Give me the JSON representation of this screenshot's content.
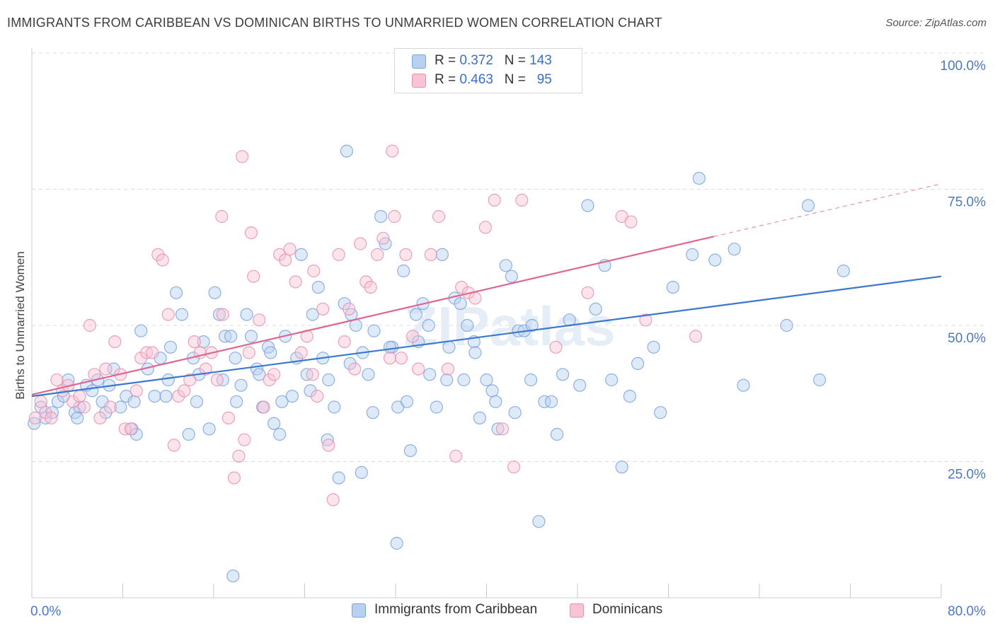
{
  "title": "IMMIGRANTS FROM CARIBBEAN VS DOMINICAN BIRTHS TO UNMARRIED WOMEN CORRELATION CHART",
  "source": "Source: ZipAtlas.com",
  "watermark": "ZIPatlas",
  "legend": {
    "rows": [
      {
        "r_label": "R =",
        "r_value": "0.372",
        "n_label": "N =",
        "n_value": "143"
      },
      {
        "r_label": "R =",
        "r_value": "0.463",
        "n_label": "N =",
        "n_value": "95"
      }
    ]
  },
  "colors": {
    "blue_fill": "#b8d0f2",
    "blue_stroke": "#7aa3e0",
    "blue_line": "#3a78d0",
    "pink_fill": "#f8c4d4",
    "pink_stroke": "#e892ad",
    "pink_line": "#e0668f",
    "tick_label": "#4a78c8",
    "grid": "#dcdcdc"
  },
  "chart_data": {
    "type": "scatter",
    "title": "IMMIGRANTS FROM CARIBBEAN VS DOMINICAN BIRTHS TO UNMARRIED WOMEN CORRELATION CHART",
    "xlabel": "",
    "ylabel": "Births to Unmarried Women",
    "xlim": [
      0,
      80
    ],
    "ylim": [
      0,
      100
    ],
    "x_tick_labels": [
      "0.0%",
      "80.0%"
    ],
    "y_tick_labels": [
      "25.0%",
      "50.0%",
      "75.0%",
      "100.0%"
    ],
    "y_ticks": [
      25,
      50,
      75,
      100
    ],
    "grid": "horizontal dashed",
    "legend_position": "bottom",
    "series": [
      {
        "name": "Immigrants from Caribbean",
        "color": "#7aa3e0",
        "trend": {
          "x0": 0,
          "y0": 37.0,
          "x1": 80,
          "y1": 59.0,
          "dashed_from": null
        },
        "points": [
          [
            0.2,
            32
          ],
          [
            0.8,
            35
          ],
          [
            1.2,
            33
          ],
          [
            1.8,
            34
          ],
          [
            2.3,
            36
          ],
          [
            2.8,
            37
          ],
          [
            3.2,
            40
          ],
          [
            3.8,
            34
          ],
          [
            4.2,
            35
          ],
          [
            4.8,
            39
          ],
          [
            5.3,
            38
          ],
          [
            5.8,
            40
          ],
          [
            6.2,
            36
          ],
          [
            6.8,
            39
          ],
          [
            7.2,
            42
          ],
          [
            7.8,
            35
          ],
          [
            8.3,
            37
          ],
          [
            8.8,
            31
          ],
          [
            9.2,
            30
          ],
          [
            9.6,
            49
          ],
          [
            10.2,
            42
          ],
          [
            10.8,
            37
          ],
          [
            11.3,
            44
          ],
          [
            11.8,
            37
          ],
          [
            12.2,
            46
          ],
          [
            12.7,
            56
          ],
          [
            13.2,
            52
          ],
          [
            13.8,
            30
          ],
          [
            14.2,
            44
          ],
          [
            14.7,
            41
          ],
          [
            15.1,
            47
          ],
          [
            15.6,
            31
          ],
          [
            16.1,
            56
          ],
          [
            16.5,
            52
          ],
          [
            17.0,
            48
          ],
          [
            17.5,
            48
          ],
          [
            17.9,
            44
          ],
          [
            18.4,
            39
          ],
          [
            18.9,
            52
          ],
          [
            19.3,
            48
          ],
          [
            19.8,
            42
          ],
          [
            20.3,
            35
          ],
          [
            20.8,
            46
          ],
          [
            21.3,
            32
          ],
          [
            21.8,
            30
          ],
          [
            22.3,
            48
          ],
          [
            22.9,
            37
          ],
          [
            23.3,
            44
          ],
          [
            23.7,
            63
          ],
          [
            24.2,
            41
          ],
          [
            24.7,
            52
          ],
          [
            25.2,
            57
          ],
          [
            25.6,
            44
          ],
          [
            26.1,
            40
          ],
          [
            26.6,
            35
          ],
          [
            27.0,
            22
          ],
          [
            27.5,
            54
          ],
          [
            28.1,
            52
          ],
          [
            28.5,
            50
          ],
          [
            29.1,
            45
          ],
          [
            29.6,
            41
          ],
          [
            30.1,
            49
          ],
          [
            30.7,
            70
          ],
          [
            31.1,
            65
          ],
          [
            31.7,
            46
          ],
          [
            32.2,
            35
          ],
          [
            32.7,
            60
          ],
          [
            33.3,
            27
          ],
          [
            33.8,
            52
          ],
          [
            34.4,
            54
          ],
          [
            34.9,
            50
          ],
          [
            35.6,
            35
          ],
          [
            36.1,
            63
          ],
          [
            36.7,
            46
          ],
          [
            37.2,
            55
          ],
          [
            37.7,
            54
          ],
          [
            38.3,
            50
          ],
          [
            38.9,
            47
          ],
          [
            39.4,
            33
          ],
          [
            40.0,
            40
          ],
          [
            40.5,
            38
          ],
          [
            41.0,
            31
          ],
          [
            41.7,
            61
          ],
          [
            42.2,
            59
          ],
          [
            42.8,
            49
          ],
          [
            43.3,
            49
          ],
          [
            43.9,
            40
          ],
          [
            44.6,
            14
          ],
          [
            45.1,
            36
          ],
          [
            45.7,
            36
          ],
          [
            46.2,
            30
          ],
          [
            46.7,
            41
          ],
          [
            47.3,
            51
          ],
          [
            48.2,
            39
          ],
          [
            48.9,
            72
          ],
          [
            49.6,
            53
          ],
          [
            50.4,
            61
          ],
          [
            51.0,
            40
          ],
          [
            51.9,
            24
          ],
          [
            52.6,
            37
          ],
          [
            53.3,
            43
          ],
          [
            54.7,
            46
          ],
          [
            55.3,
            34
          ],
          [
            56.4,
            57
          ],
          [
            58.1,
            63
          ],
          [
            58.7,
            77
          ],
          [
            60.1,
            62
          ],
          [
            61.8,
            64
          ],
          [
            62.6,
            39
          ],
          [
            66.4,
            50
          ],
          [
            68.3,
            72
          ],
          [
            69.3,
            40
          ],
          [
            71.4,
            60
          ],
          [
            17.7,
            4
          ],
          [
            32.1,
            10
          ],
          [
            27.7,
            82
          ],
          [
            4.0,
            33
          ],
          [
            6.5,
            34
          ],
          [
            9.0,
            36
          ],
          [
            12.0,
            40
          ],
          [
            14.5,
            36
          ],
          [
            16.8,
            40
          ],
          [
            18.0,
            36
          ],
          [
            20.0,
            41
          ],
          [
            21.0,
            45
          ],
          [
            22.0,
            36
          ],
          [
            24.5,
            38
          ],
          [
            26.0,
            29
          ],
          [
            28.0,
            43
          ],
          [
            29.0,
            23
          ],
          [
            30.0,
            34
          ],
          [
            31.5,
            46
          ],
          [
            33.0,
            36
          ],
          [
            34.0,
            47
          ],
          [
            35.0,
            41
          ],
          [
            36.5,
            40
          ],
          [
            38.0,
            40
          ],
          [
            39.0,
            45
          ],
          [
            40.8,
            36
          ],
          [
            42.5,
            34
          ],
          [
            44.0,
            50
          ]
        ]
      },
      {
        "name": "Dominicans",
        "color": "#e892ad",
        "trend": {
          "x0": 0,
          "y0": 37.3,
          "x1": 80,
          "y1": 76.0,
          "dashed_from": 60
        },
        "points": [
          [
            0.3,
            33
          ],
          [
            0.8,
            36
          ],
          [
            1.2,
            34
          ],
          [
            1.7,
            33
          ],
          [
            2.2,
            40
          ],
          [
            2.7,
            38
          ],
          [
            3.2,
            39
          ],
          [
            3.6,
            36
          ],
          [
            4.2,
            37
          ],
          [
            4.6,
            35
          ],
          [
            5.1,
            50
          ],
          [
            5.5,
            41
          ],
          [
            6.0,
            33
          ],
          [
            6.5,
            42
          ],
          [
            6.9,
            35
          ],
          [
            7.3,
            47
          ],
          [
            7.8,
            41
          ],
          [
            8.2,
            31
          ],
          [
            8.7,
            31
          ],
          [
            9.2,
            38
          ],
          [
            9.6,
            44
          ],
          [
            10.1,
            45
          ],
          [
            10.6,
            45
          ],
          [
            11.1,
            63
          ],
          [
            11.5,
            62
          ],
          [
            12.0,
            52
          ],
          [
            12.5,
            28
          ],
          [
            12.9,
            37
          ],
          [
            13.4,
            38
          ],
          [
            13.9,
            40
          ],
          [
            14.3,
            47
          ],
          [
            14.8,
            45
          ],
          [
            15.3,
            42
          ],
          [
            15.8,
            45
          ],
          [
            16.3,
            40
          ],
          [
            16.8,
            52
          ],
          [
            17.3,
            33
          ],
          [
            17.8,
            22
          ],
          [
            18.2,
            26
          ],
          [
            18.7,
            29
          ],
          [
            19.1,
            45
          ],
          [
            19.5,
            59
          ],
          [
            20.0,
            51
          ],
          [
            20.4,
            35
          ],
          [
            20.9,
            40
          ],
          [
            21.3,
            41
          ],
          [
            21.8,
            63
          ],
          [
            22.3,
            62
          ],
          [
            22.7,
            64
          ],
          [
            23.2,
            58
          ],
          [
            23.7,
            45
          ],
          [
            24.2,
            48
          ],
          [
            24.7,
            41
          ],
          [
            25.1,
            37
          ],
          [
            25.6,
            53
          ],
          [
            26.1,
            28
          ],
          [
            26.5,
            18
          ],
          [
            27.0,
            63
          ],
          [
            27.5,
            47
          ],
          [
            27.9,
            53
          ],
          [
            28.4,
            42
          ],
          [
            28.9,
            65
          ],
          [
            29.4,
            58
          ],
          [
            29.8,
            57
          ],
          [
            30.4,
            63
          ],
          [
            30.9,
            66
          ],
          [
            31.5,
            44
          ],
          [
            31.9,
            70
          ],
          [
            32.5,
            44
          ],
          [
            32.9,
            63
          ],
          [
            33.5,
            48
          ],
          [
            34.0,
            42
          ],
          [
            35.1,
            63
          ],
          [
            35.8,
            70
          ],
          [
            36.6,
            42
          ],
          [
            37.3,
            26
          ],
          [
            37.8,
            57
          ],
          [
            38.4,
            56
          ],
          [
            39.0,
            55
          ],
          [
            39.9,
            68
          ],
          [
            40.7,
            73
          ],
          [
            41.4,
            31
          ],
          [
            42.4,
            24
          ],
          [
            43.1,
            73
          ],
          [
            46.1,
            46
          ],
          [
            48.9,
            56
          ],
          [
            51.9,
            70
          ],
          [
            52.7,
            69
          ],
          [
            54.0,
            51
          ],
          [
            58.4,
            48
          ],
          [
            18.5,
            81
          ],
          [
            31.7,
            82
          ],
          [
            24.8,
            60
          ],
          [
            16.7,
            70
          ],
          [
            19.3,
            67
          ]
        ]
      }
    ]
  },
  "bottom_legend": [
    {
      "label": "Immigrants from Caribbean"
    },
    {
      "label": "Dominicans"
    }
  ]
}
